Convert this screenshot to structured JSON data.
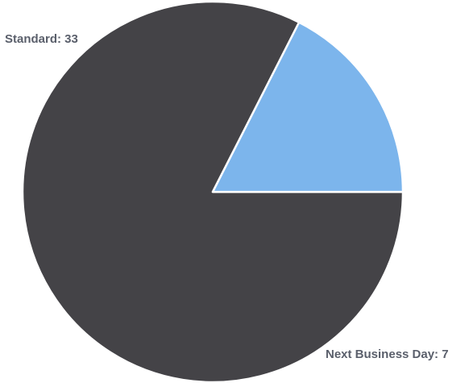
{
  "chart_data": {
    "type": "pie",
    "title": "",
    "slices": [
      {
        "label": "Standard",
        "value": 33,
        "color": "#444347",
        "label_text": "Standard: 33"
      },
      {
        "label": "Next Business Day",
        "value": 7,
        "color": "#7cb5ec",
        "label_text": "Next Business Day: 7"
      }
    ],
    "start_position": "3 o'clock",
    "direction": "clockwise"
  }
}
